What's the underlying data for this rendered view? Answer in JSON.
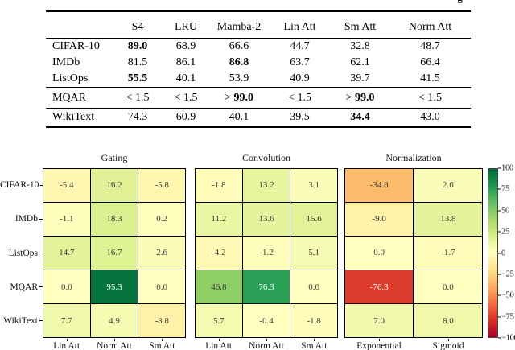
{
  "caption_fragment": "g",
  "results_table": {
    "columns": [
      "",
      "S4",
      "LRU",
      "Mamba-2",
      "Lin Att",
      "Sm Att",
      "Norm Att"
    ],
    "groups": [
      {
        "rows": [
          {
            "label": "CIFAR-10",
            "cells": [
              {
                "t": "89.0",
                "b": true
              },
              {
                "t": "68.9"
              },
              {
                "t": "66.6"
              },
              {
                "t": "44.7"
              },
              {
                "t": "32.8"
              },
              {
                "t": "48.7"
              }
            ]
          },
          {
            "label": "IMDb",
            "cells": [
              {
                "t": "81.5"
              },
              {
                "t": "86.1"
              },
              {
                "t": "86.8",
                "b": true
              },
              {
                "t": "63.7"
              },
              {
                "t": "62.1"
              },
              {
                "t": "66.4"
              }
            ]
          },
          {
            "label": "ListOps",
            "cells": [
              {
                "t": "55.5",
                "b": true
              },
              {
                "t": "40.1"
              },
              {
                "t": "53.9"
              },
              {
                "t": "40.9"
              },
              {
                "t": "39.7"
              },
              {
                "t": "41.5"
              }
            ]
          }
        ]
      },
      {
        "rows": [
          {
            "label": "MQAR",
            "cells": [
              {
                "pre": "< ",
                "t": "1.5"
              },
              {
                "pre": "< ",
                "t": "1.5"
              },
              {
                "pre": "> ",
                "t": "99.0",
                "b": true
              },
              {
                "pre": "< ",
                "t": "1.5"
              },
              {
                "pre": "> ",
                "t": "99.0",
                "b": true
              },
              {
                "pre": "< ",
                "t": "1.5"
              }
            ]
          }
        ]
      },
      {
        "rows": [
          {
            "label": "WikiText",
            "cells": [
              {
                "t": "74.3"
              },
              {
                "t": "60.9"
              },
              {
                "t": "40.1"
              },
              {
                "t": "39.5"
              },
              {
                "t": "34.4",
                "b": true
              },
              {
                "t": "43.0"
              }
            ]
          }
        ]
      }
    ]
  },
  "chart_data": {
    "type": "heatmap",
    "row_labels": [
      "CIFAR-10",
      "IMDb",
      "ListOps",
      "MQAR",
      "WikiText"
    ],
    "panels": [
      {
        "title": "Gating",
        "col_labels": [
          "Lin Att",
          "Norm Att",
          "Sm Att"
        ],
        "values": [
          [
            -5.4,
            16.2,
            -5.8
          ],
          [
            -1.1,
            18.3,
            0.2
          ],
          [
            14.7,
            16.7,
            2.6
          ],
          [
            0.0,
            95.3,
            0.0
          ],
          [
            7.7,
            4.9,
            -8.8
          ]
        ]
      },
      {
        "title": "Convolution",
        "col_labels": [
          "Lin Att",
          "Norm Att",
          "Sm Att"
        ],
        "values": [
          [
            -1.8,
            13.2,
            3.1
          ],
          [
            11.2,
            13.6,
            15.6
          ],
          [
            -4.2,
            -1.2,
            5.1
          ],
          [
            46.8,
            76.3,
            0.0
          ],
          [
            5.7,
            -0.4,
            -1.8
          ]
        ]
      },
      {
        "title": "Normalization",
        "col_labels": [
          "Exponential",
          "Sigmoid"
        ],
        "values": [
          [
            -34.8,
            2.6
          ],
          [
            -9.0,
            13.8
          ],
          [
            0.0,
            -1.7
          ],
          [
            -76.3,
            0.0
          ],
          [
            7.0,
            8.0
          ]
        ]
      }
    ],
    "vmin": -100,
    "vmax": 100,
    "colorbar_ticks": [
      "100",
      "75",
      "50",
      "25",
      "0",
      "−25",
      "−50",
      "−75",
      "−100"
    ],
    "colormap": "RdYlGn",
    "colormap_stops": [
      "#a50026",
      "#d73027",
      "#f46d43",
      "#fdae61",
      "#fee08b",
      "#ffffbf",
      "#d9ef8b",
      "#a6d96a",
      "#66bd63",
      "#1a9850",
      "#006837"
    ],
    "legend_position": "right",
    "grid": true
  }
}
